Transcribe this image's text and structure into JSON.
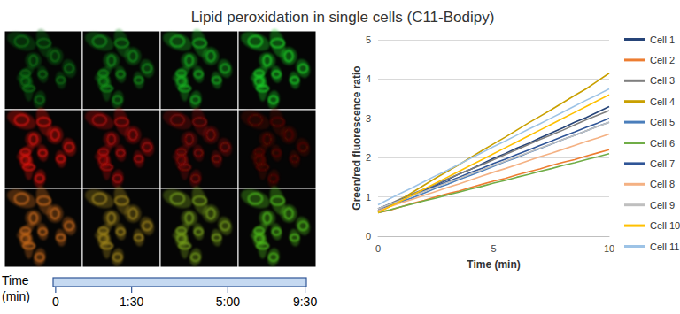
{
  "chart_data": {
    "type": "line",
    "title": "Lipid peroxidation in single cells (C11-Bodipy)",
    "x_label": "Time (min)",
    "y_label": "Green/red fluorescence ratio",
    "x": [
      0,
      0.5,
      1,
      1.5,
      2,
      2.5,
      3,
      3.5,
      4,
      4.5,
      5,
      5.5,
      6,
      6.5,
      7,
      7.5,
      8,
      8.5,
      9,
      9.5,
      10
    ],
    "series": [
      {
        "name": "Cell 1",
        "color": "#264478",
        "values": [
          0.65,
          0.78,
          0.9,
          1.05,
          1.18,
          1.3,
          1.44,
          1.58,
          1.7,
          1.84,
          1.98,
          2.1,
          2.24,
          2.36,
          2.5,
          2.63,
          2.76,
          2.9,
          3.02,
          3.16,
          3.3
        ]
      },
      {
        "name": "Cell 2",
        "color": "#ed7d31",
        "values": [
          0.6,
          0.66,
          0.75,
          0.84,
          0.91,
          1.0,
          1.08,
          1.15,
          1.24,
          1.32,
          1.4,
          1.47,
          1.56,
          1.64,
          1.71,
          1.8,
          1.88,
          1.95,
          2.04,
          2.12,
          2.2
        ]
      },
      {
        "name": "Cell 3",
        "color": "#7f7f7f",
        "values": [
          0.7,
          0.82,
          0.96,
          1.08,
          1.2,
          1.32,
          1.46,
          1.58,
          1.7,
          1.82,
          1.95,
          2.08,
          2.2,
          2.33,
          2.46,
          2.58,
          2.7,
          2.83,
          2.96,
          3.08,
          3.2
        ]
      },
      {
        "name": "Cell 4",
        "color": "#c9a000",
        "values": [
          0.6,
          0.78,
          0.94,
          1.12,
          1.3,
          1.48,
          1.65,
          1.82,
          2.0,
          2.18,
          2.35,
          2.52,
          2.7,
          2.88,
          3.05,
          3.22,
          3.4,
          3.58,
          3.75,
          3.95,
          4.15
        ]
      },
      {
        "name": "Cell 5",
        "color": "#4a7ebb",
        "values": [
          0.65,
          0.76,
          0.88,
          0.98,
          1.1,
          1.22,
          1.32,
          1.44,
          1.55,
          1.66,
          1.78,
          1.9,
          2.0,
          2.12,
          2.23,
          2.34,
          2.46,
          2.57,
          2.68,
          2.8,
          2.9
        ]
      },
      {
        "name": "Cell 6",
        "color": "#70ad47",
        "values": [
          0.6,
          0.67,
          0.75,
          0.82,
          0.9,
          0.97,
          1.05,
          1.12,
          1.2,
          1.27,
          1.35,
          1.42,
          1.5,
          1.57,
          1.65,
          1.72,
          1.8,
          1.87,
          1.95,
          2.02,
          2.1
        ]
      },
      {
        "name": "Cell 7",
        "color": "#2f5597",
        "values": [
          0.7,
          0.81,
          0.93,
          1.04,
          1.16,
          1.27,
          1.39,
          1.5,
          1.62,
          1.73,
          1.85,
          1.96,
          2.08,
          2.19,
          2.31,
          2.42,
          2.54,
          2.65,
          2.77,
          2.88,
          3.0
        ]
      },
      {
        "name": "Cell 8",
        "color": "#f4b183",
        "values": [
          0.65,
          0.75,
          0.85,
          0.94,
          1.04,
          1.14,
          1.24,
          1.33,
          1.43,
          1.53,
          1.63,
          1.72,
          1.82,
          1.92,
          2.02,
          2.11,
          2.21,
          2.31,
          2.41,
          2.5,
          2.6
        ]
      },
      {
        "name": "Cell 9",
        "color": "#bfbfbf",
        "values": [
          0.7,
          0.81,
          0.92,
          1.03,
          1.14,
          1.25,
          1.36,
          1.47,
          1.58,
          1.69,
          1.8,
          1.91,
          2.02,
          2.13,
          2.24,
          2.35,
          2.46,
          2.57,
          2.68,
          2.79,
          2.9
        ]
      },
      {
        "name": "Cell 10",
        "color": "#ffc000",
        "values": [
          0.6,
          0.75,
          0.9,
          1.05,
          1.2,
          1.35,
          1.5,
          1.65,
          1.8,
          1.95,
          2.1,
          2.25,
          2.4,
          2.55,
          2.7,
          2.85,
          3.0,
          3.15,
          3.3,
          3.45,
          3.6
        ]
      },
      {
        "name": "Cell 11",
        "color": "#9dc3e6",
        "values": [
          0.8,
          0.95,
          1.1,
          1.24,
          1.39,
          1.54,
          1.68,
          1.83,
          1.98,
          2.13,
          2.28,
          2.42,
          2.57,
          2.72,
          2.86,
          3.01,
          3.16,
          3.31,
          3.46,
          3.6,
          3.75
        ]
      }
    ],
    "xlim": [
      0,
      10
    ],
    "xticks": [
      0,
      5,
      10
    ],
    "ylim": [
      0,
      5
    ],
    "yticks": [
      0,
      1,
      2,
      3,
      4,
      5
    ],
    "grid": true,
    "legend": "right"
  },
  "micrograph_panel": {
    "time_label": [
      "Time",
      "(min)"
    ],
    "time_marks": [
      "0",
      "1:30",
      "5:00",
      "9:30"
    ]
  }
}
